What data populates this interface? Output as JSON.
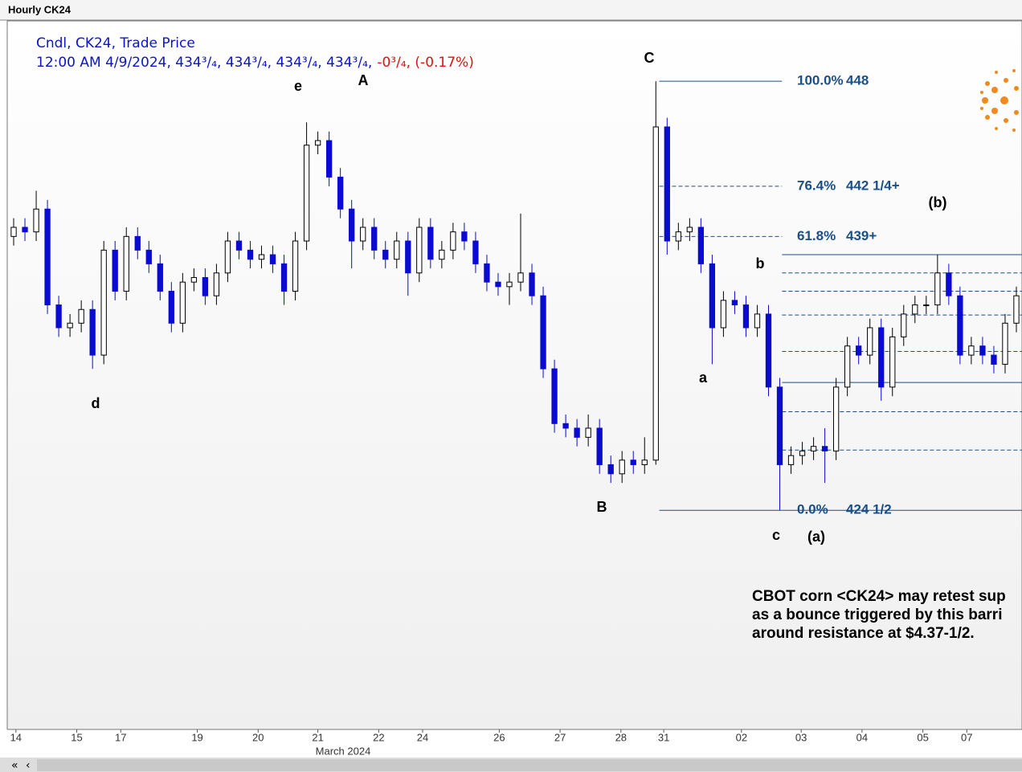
{
  "header": {
    "title": "Hourly CK24"
  },
  "chart_data": {
    "type": "candlestick",
    "legend": [
      "Cndl, CK24, Trade Price",
      "12:00 AM 4/9/2024, 434³/₄, 434³/₄, 434³/₄, 434³/₄,",
      "-0³/₄, (-0.17%)"
    ],
    "comment": [
      "CBOT corn <CK24> may retest sup",
      "as a bounce triggered by this barri",
      "around resistance at $4.37-1/2."
    ],
    "x_label": "March 2024",
    "ylim": [
      412.5,
      451.35
    ],
    "xlim": [
      -0.5,
      89.5
    ],
    "xticks": [
      {
        "value": 0.2,
        "label": "14"
      },
      {
        "value": 5.6,
        "label": "15"
      },
      {
        "value": 9.5,
        "label": "17"
      },
      {
        "value": 16.3,
        "label": "19"
      },
      {
        "value": 21.7,
        "label": "20"
      },
      {
        "value": 27,
        "label": "21"
      },
      {
        "value": 32.4,
        "label": "22"
      },
      {
        "value": 36.3,
        "label": "24"
      },
      {
        "value": 43.1,
        "label": "26"
      },
      {
        "value": 48.5,
        "label": "27"
      },
      {
        "value": 53.9,
        "label": "28"
      },
      {
        "value": 57.7,
        "label": "31"
      },
      {
        "value": 64.6,
        "label": "02"
      },
      {
        "value": 69.9,
        "label": "03"
      },
      {
        "value": 75.3,
        "label": "04"
      },
      {
        "value": 80.7,
        "label": "05"
      },
      {
        "value": 84.6,
        "label": "07"
      }
    ],
    "up_color": "#ffffff",
    "down_color": "#0a0ad0",
    "open": [
      439.5,
      440,
      439.75,
      441,
      435.75,
      434.5,
      434.75,
      435.5,
      433,
      438.75,
      436.5,
      439.5,
      438.75,
      438,
      436.5,
      434.75,
      437,
      437.25,
      436.25,
      437.5,
      439.25,
      438.75,
      438.25,
      438.5,
      438,
      436.5,
      439.25,
      444.5,
      444.75,
      442.75,
      441,
      439.25,
      440,
      438.75,
      438.25,
      439.25,
      437.5,
      440,
      438.25,
      438.75,
      439.75,
      439.25,
      438,
      437,
      436.75,
      437,
      437.5,
      436.25,
      432.25,
      429.25,
      429,
      428.5,
      429,
      427,
      426.5,
      427.25,
      427,
      427.25,
      445.5,
      439.25,
      439.75,
      440,
      438,
      434.5,
      436,
      435.75,
      434.5,
      435.25,
      431.25,
      427,
      427.5,
      427.75,
      428,
      427.75,
      431.25,
      433.5,
      433,
      434.5,
      431.25,
      434,
      435.25,
      435.75,
      435.75,
      437.5,
      436.25,
      433,
      433.5,
      433,
      432.5,
      434.75
    ],
    "high": [
      440.5,
      440.5,
      442,
      441.5,
      436.25,
      435.25,
      436,
      436,
      439.25,
      439.25,
      440,
      440,
      439.25,
      438.5,
      437,
      437.5,
      437.75,
      437.75,
      438,
      439.75,
      439.75,
      439.25,
      439,
      439,
      438.5,
      439.75,
      445.75,
      445.25,
      445.25,
      443.25,
      441.5,
      440.5,
      440.5,
      439.25,
      439.75,
      439.75,
      440.5,
      440.5,
      439.25,
      440.25,
      440.25,
      439.75,
      438.5,
      437.5,
      437.5,
      440.75,
      438,
      436.75,
      432.75,
      429.75,
      429.5,
      429.75,
      429.5,
      427.5,
      427.75,
      427.75,
      428.5,
      448,
      446,
      440.25,
      440.5,
      440.5,
      438.5,
      436.5,
      436.5,
      436.25,
      435.75,
      435.75,
      431.75,
      428,
      428.25,
      428.5,
      429,
      431.75,
      434,
      434,
      435,
      435,
      434.5,
      435.75,
      436.25,
      436.25,
      438.5,
      438,
      436.75,
      434,
      434,
      433.5,
      435.25,
      436.75
    ],
    "low": [
      439,
      439.25,
      439.25,
      435.25,
      434,
      434,
      434.25,
      432.25,
      432.5,
      436,
      436,
      438.25,
      437.5,
      436,
      434.25,
      434.25,
      436.5,
      435.75,
      435.75,
      437,
      438.25,
      437.75,
      437.75,
      437.5,
      435.75,
      436,
      438.75,
      444,
      442.25,
      440.5,
      437.75,
      438.75,
      438.25,
      437.75,
      437.75,
      436.25,
      437,
      437.75,
      437.75,
      438.25,
      438.75,
      437.5,
      436.5,
      436.25,
      435.75,
      436.5,
      435.75,
      431.75,
      428.75,
      428.5,
      428,
      428,
      426.5,
      426,
      426,
      426.5,
      426.5,
      427,
      438.5,
      438.75,
      439.25,
      437.5,
      432.5,
      434,
      435.25,
      434,
      434,
      430.75,
      424.5,
      426.5,
      427,
      427.25,
      426,
      427.25,
      430.75,
      432.5,
      432.5,
      430.5,
      430.75,
      433.5,
      434.75,
      435.25,
      435.25,
      435.75,
      432.5,
      432.5,
      432.5,
      432,
      432,
      434.25
    ],
    "close": [
      440,
      439.75,
      441,
      435.75,
      434.5,
      434.75,
      435.5,
      433,
      438.75,
      436.5,
      439.5,
      438.75,
      438,
      436.5,
      434.75,
      437,
      437.25,
      436.25,
      437.5,
      439.25,
      438.75,
      438.25,
      438.5,
      438,
      436.5,
      439.25,
      444.5,
      444.75,
      442.75,
      441,
      439.25,
      440,
      438.75,
      438.25,
      439.25,
      437.5,
      440,
      438.25,
      438.75,
      439.75,
      439.25,
      438,
      437,
      436.75,
      437,
      437.5,
      436.25,
      432.25,
      429.25,
      429,
      428.5,
      429,
      427,
      426.5,
      427.25,
      427,
      427.25,
      445.5,
      439.25,
      439.75,
      440,
      438,
      434.5,
      436,
      435.75,
      434.5,
      435.25,
      431.25,
      427,
      427.5,
      427.75,
      428,
      427.75,
      431.25,
      433.5,
      433,
      434.5,
      431.25,
      434,
      435.25,
      435.75,
      435.75,
      437.5,
      436.25,
      433,
      433.5,
      433,
      432.5,
      434.75,
      436.25
    ],
    "fib_color": "#1b4f86",
    "fib_levels": [
      {
        "value": 448,
        "pct": "100.0%",
        "label": "448",
        "dashed": false
      },
      {
        "value": 442.25,
        "pct": "76.4%",
        "label": "442 1/4+",
        "dashed": true
      },
      {
        "value": 439.5,
        "pct": "61.8%",
        "label": "439+",
        "dashed": true
      },
      {
        "value": 424.5,
        "pct": "0.0%",
        "label": "424 1/2",
        "dashed": false
      }
    ],
    "secondary_levels": [
      {
        "value": 438.5,
        "dashed": false
      },
      {
        "value": 437.5,
        "dashed": true
      },
      {
        "value": 436.5,
        "dashed": true
      },
      {
        "value": 435.2,
        "dashed": true
      },
      {
        "value": 433.2,
        "dashed": true
      },
      {
        "value": 431.5,
        "dashed": false
      },
      {
        "value": 429.9,
        "dashed": true
      },
      {
        "value": 427.8,
        "dashed": true
      },
      {
        "value": 424.5,
        "dashed": false
      }
    ],
    "annotations": [
      "e",
      "A",
      "C",
      "d",
      "B",
      "a",
      "b",
      "c",
      "(a)",
      "(b)"
    ]
  }
}
